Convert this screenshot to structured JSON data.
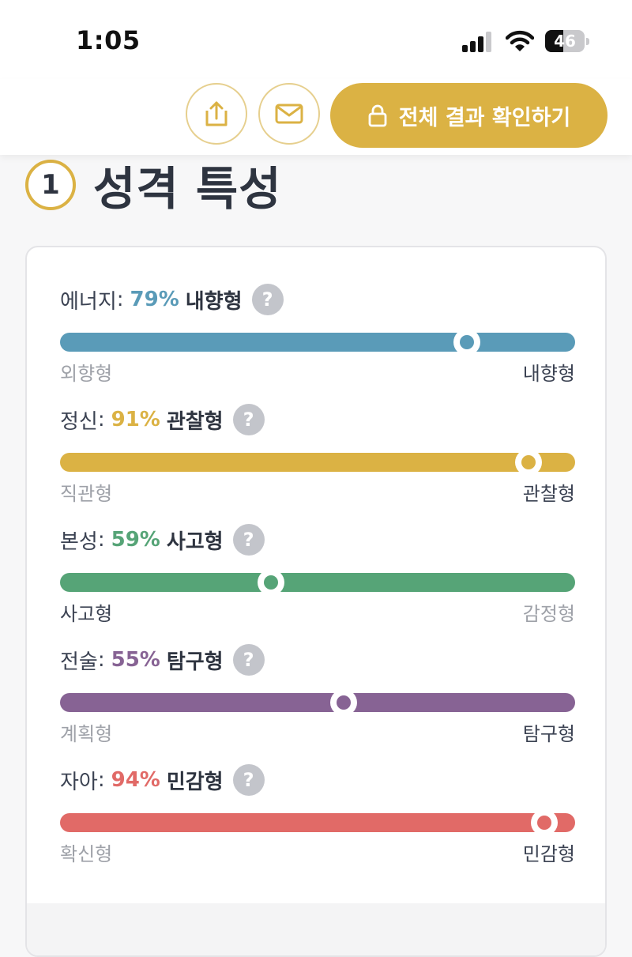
{
  "status_bar": {
    "time": "1:05",
    "battery": "46",
    "battery_level": 0.46
  },
  "actions": {
    "share_icon": "share-upload-icon",
    "mail_icon": "envelope-icon",
    "cta_icon": "lock-icon",
    "cta_label": "전체 결과 확인하기",
    "accent_color": "#dbb244"
  },
  "section": {
    "number": "1",
    "title": "성격 특성"
  },
  "traits": [
    {
      "name": "에너지",
      "colon": ":",
      "percent": "79%",
      "type": "내향형",
      "value": 0.79,
      "color": "#5a9bb8",
      "left": "외향형",
      "right": "내향형",
      "active": "right"
    },
    {
      "name": "정신",
      "colon": ":",
      "percent": "91%",
      "type": "관찰형",
      "value": 0.91,
      "color": "#dbb244",
      "left": "직관형",
      "right": "관찰형",
      "active": "right"
    },
    {
      "name": "본성",
      "colon": ":",
      "percent": "59%",
      "type": "사고형",
      "value": 0.41,
      "color": "#56a477",
      "left": "사고형",
      "right": "감정형",
      "active": "left"
    },
    {
      "name": "전술",
      "colon": ":",
      "percent": "55%",
      "type": "탐구형",
      "value": 0.55,
      "color": "#876394",
      "left": "계획형",
      "right": "탐구형",
      "active": "right"
    },
    {
      "name": "자아",
      "colon": ":",
      "percent": "94%",
      "type": "민감형",
      "value": 0.94,
      "color": "#e16a67",
      "left": "확신형",
      "right": "민감형",
      "active": "right"
    }
  ]
}
